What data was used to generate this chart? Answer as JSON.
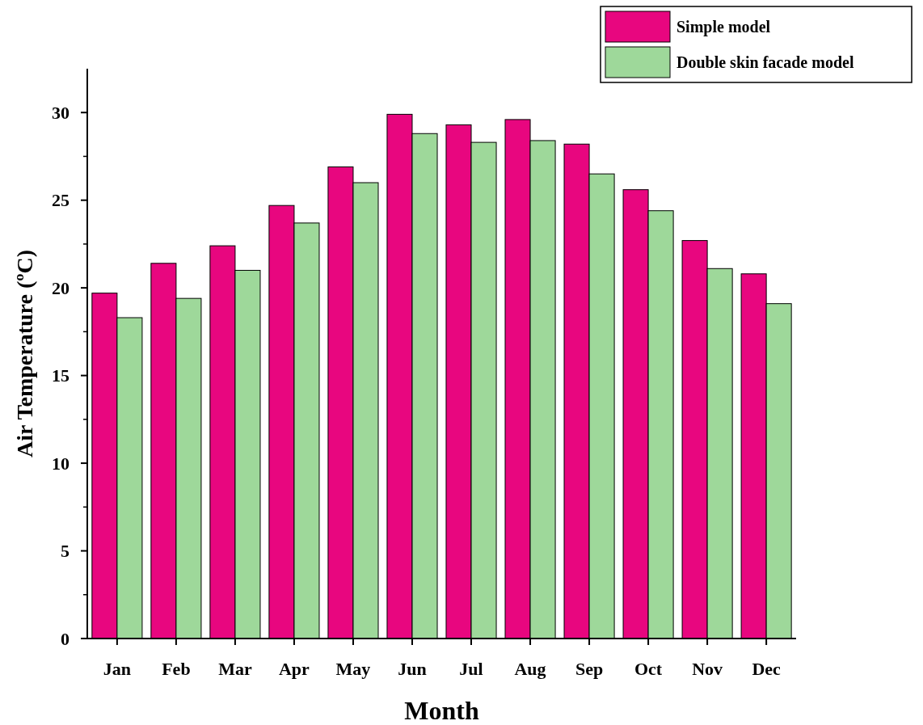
{
  "chart_data": {
    "type": "bar",
    "xlabel": "Month",
    "ylabel": "Air Temperature (ºC)",
    "categories": [
      "Jan",
      "Feb",
      "Mar",
      "Apr",
      "May",
      "Jun",
      "Jul",
      "Aug",
      "Sep",
      "Oct",
      "Nov",
      "Dec"
    ],
    "series": [
      {
        "name": "Simple model",
        "color": "#e8067f",
        "values": [
          19.7,
          21.4,
          22.4,
          24.7,
          26.9,
          29.9,
          29.3,
          29.6,
          28.2,
          25.6,
          22.7,
          20.8
        ]
      },
      {
        "name": "Double skin facade model",
        "color": "#9ed89a",
        "values": [
          18.3,
          19.4,
          21.0,
          23.7,
          26.0,
          28.8,
          28.3,
          28.4,
          26.5,
          24.4,
          21.1,
          19.1
        ]
      }
    ],
    "ylim": [
      0,
      32.5
    ],
    "yticks": [
      0,
      5,
      10,
      15,
      20,
      25,
      30
    ],
    "grid": false,
    "legend": "top right"
  }
}
